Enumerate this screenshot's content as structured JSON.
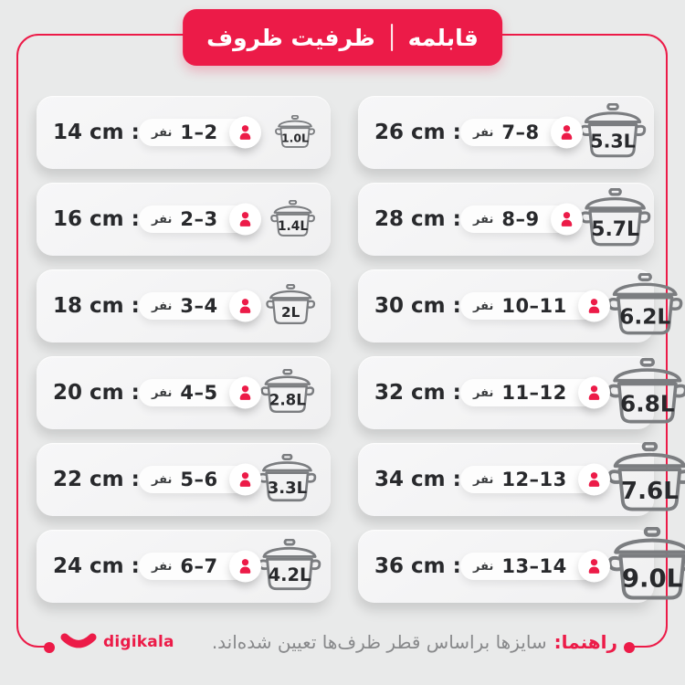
{
  "header": {
    "capacity_title": "ظرفیت ظروف",
    "product_title": "قابلمه"
  },
  "rows_left": [
    {
      "size_label": "14 cm :",
      "people_range": "1–2",
      "people_unit": "نفر",
      "liters": "1.0L"
    },
    {
      "size_label": "16 cm :",
      "people_range": "2–3",
      "people_unit": "نفر",
      "liters": "1.4L"
    },
    {
      "size_label": "18 cm :",
      "people_range": "3–4",
      "people_unit": "نفر",
      "liters": "2L"
    },
    {
      "size_label": "20 cm :",
      "people_range": "4–5",
      "people_unit": "نفر",
      "liters": "2.8L"
    },
    {
      "size_label": "22 cm :",
      "people_range": "5–6",
      "people_unit": "نفر",
      "liters": "3.3L"
    },
    {
      "size_label": "24 cm :",
      "people_range": "6–7",
      "people_unit": "نفر",
      "liters": "4.2L"
    }
  ],
  "rows_right": [
    {
      "size_label": "26 cm :",
      "people_range": "7–8",
      "people_unit": "نفر",
      "liters": "5.3L"
    },
    {
      "size_label": "28 cm :",
      "people_range": "8–9",
      "people_unit": "نفر",
      "liters": "5.7L"
    },
    {
      "size_label": "30 cm :",
      "people_range": "10–11",
      "people_unit": "نفر",
      "liters": "6.2L"
    },
    {
      "size_label": "32 cm :",
      "people_range": "11–12",
      "people_unit": "نفر",
      "liters": "6.8L"
    },
    {
      "size_label": "34 cm :",
      "people_range": "12–13",
      "people_unit": "نفر",
      "liters": "7.6L"
    },
    {
      "size_label": "36 cm :",
      "people_range": "13–14",
      "people_unit": "نفر",
      "liters": "9.0L"
    }
  ],
  "footer": {
    "brand": "digikala",
    "note_label": "راهنما:",
    "note_text": "سایزها براساس قطر ظرف‌ها تعیین شده‌اند."
  },
  "colors": {
    "red": "#ec1b48",
    "background": "#e9eaea",
    "card": "#f4f4f5",
    "ink": "#28292c",
    "pot_outline": "#7b7d80",
    "note_gray": "#88898b"
  }
}
